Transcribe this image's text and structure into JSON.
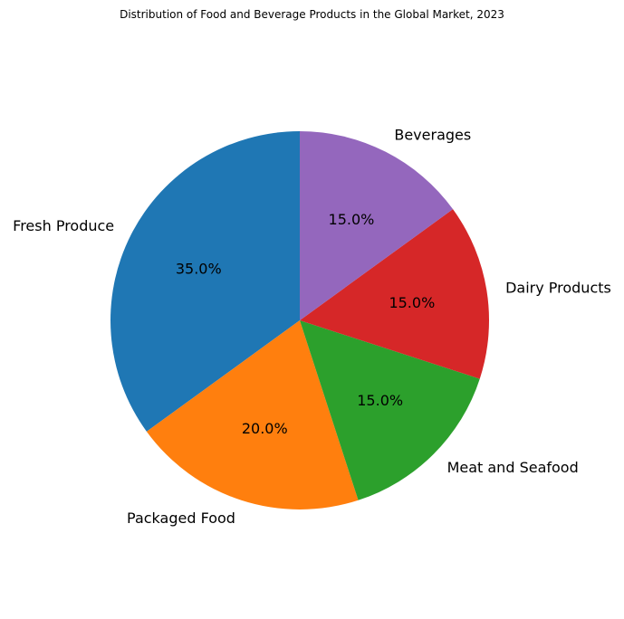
{
  "chart_data": {
    "type": "pie",
    "title": "Distribution of Food and Beverage Products in the Global Market, 2023",
    "categories": [
      "Fresh Produce",
      "Packaged Food",
      "Meat and Seafood",
      "Dairy Products",
      "Beverages"
    ],
    "values": [
      35.0,
      20.0,
      15.0,
      15.0,
      15.0
    ],
    "value_labels": [
      "35.0%",
      "20.0%",
      "15.0%",
      "15.0%",
      "15.0%"
    ],
    "colors": [
      "#1f77b4",
      "#ff7f0e",
      "#2ca02c",
      "#d62728",
      "#9467bd"
    ],
    "start_angle_deg": 90,
    "direction": "counterclockwise",
    "legend": "none"
  }
}
